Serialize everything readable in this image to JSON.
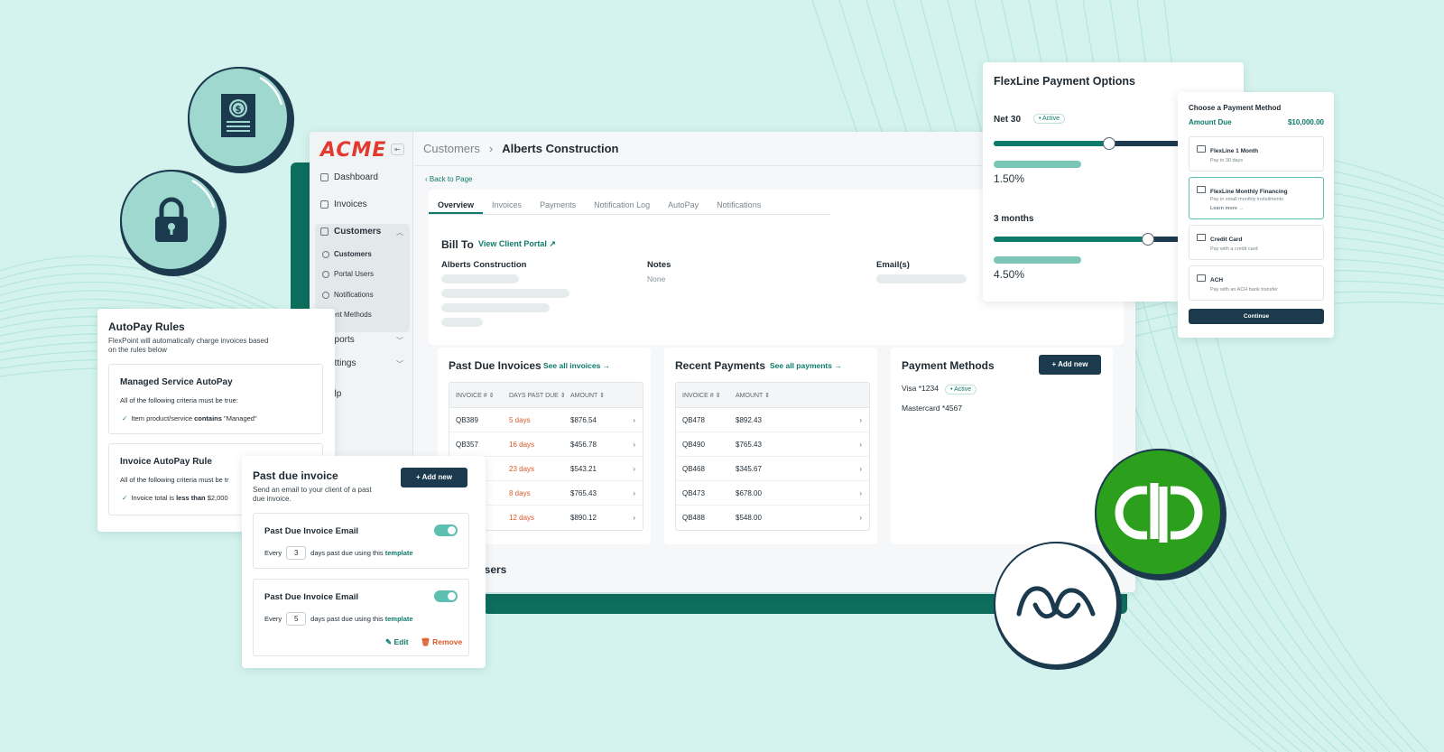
{
  "app": {
    "logo": "ACME",
    "collapse_icon": "⇤",
    "sidebar": {
      "dashboard": "Dashboard",
      "invoices": "Invoices",
      "customers": "Customers",
      "sub_customers": "Customers",
      "sub_portal_users": "Portal Users",
      "sub_notifications": "Notifications",
      "sub_payment_methods": "yment Methods",
      "reports": "eports",
      "settings": "ettings",
      "help": "elp"
    },
    "breadcrumb": {
      "parent": "Customers",
      "sep": "›",
      "current": "Alberts Construction"
    },
    "back_link": "‹ Back to Page",
    "tabs": [
      "Overview",
      "Invoices",
      "Payments",
      "Notification Log",
      "AutoPay",
      "Notifications"
    ],
    "bill_to": {
      "title": "Bill To",
      "portal_link": "View Client Portal ↗",
      "company": "Alberts Construction",
      "notes_label": "Notes",
      "notes_value": "None",
      "emails_label": "Email(s)"
    },
    "past_due": {
      "title": "Past Due Invoices",
      "link": "See all invoices →",
      "col_invoice": "INVOICE #  ⇕",
      "col_days": "DAYS PAST DUE  ⇕",
      "col_amount": "AMOUNT  ⇕",
      "rows": [
        {
          "invoice": "QB389",
          "days": "5 days",
          "amount": "$876.54"
        },
        {
          "invoice": "QB357",
          "days": "16 days",
          "amount": "$456.78"
        },
        {
          "invoice": "",
          "days": "23 days",
          "amount": "$543.21"
        },
        {
          "invoice": "",
          "days": "8 days",
          "amount": "$765.43"
        },
        {
          "invoice": "",
          "days": "12 days",
          "amount": "$890.12"
        }
      ]
    },
    "recent_payments": {
      "title": "Recent Payments",
      "link": "See all payments →",
      "col_invoice": "INVOICE #  ⇕",
      "col_amount": "AMOUNT  ⇕",
      "rows": [
        {
          "invoice": "QB478",
          "amount": "$892.43"
        },
        {
          "invoice": "QB490",
          "amount": "$765.43"
        },
        {
          "invoice": "QB468",
          "amount": "$345.67"
        },
        {
          "invoice": "QB473",
          "amount": "$678.00"
        },
        {
          "invoice": "QB488",
          "amount": "$548.00"
        }
      ]
    },
    "payment_methods": {
      "title": "Payment Methods",
      "add_button": "+   Add new",
      "visa": "Visa *1234",
      "visa_status": "• Active",
      "mastercard": "Mastercard *4567"
    },
    "users_label": "Users",
    "row_arrow": "›"
  },
  "autopay": {
    "title": "AutoPay Rules",
    "desc_line1": "FlexPoint will automatically charge invoices based",
    "desc_line2": "on the rules below",
    "rule1_title": "Managed Service AutoPay",
    "rule1_criteria": "All of the following criteria must be true:",
    "rule1_check_pre": "Item product/service",
    "rule1_check_bold": "contains",
    "rule1_check_post": "\"Managed\"",
    "rule2_title": "Invoice AutoPay Rule",
    "rule2_criteria": "All of the following criteria must be tr",
    "rule2_check_pre": "Invoice total is",
    "rule2_check_bold": "less than",
    "rule2_check_post": "$2,000",
    "check": "✓"
  },
  "past_due_card": {
    "title": "Past due invoice",
    "desc_line1": "Send an email to your client of a past",
    "desc_line2": "due invoice.",
    "add_button": "+   Add new",
    "emails": [
      {
        "title": "Past Due Invoice Email",
        "every": "Every",
        "days": "3",
        "text": "days past due using this",
        "link": "template"
      },
      {
        "title": "Past Due Invoice Email",
        "every": "Every",
        "days": "5",
        "text": "days past due using this",
        "link": "template"
      }
    ],
    "edit": "✎ Edit",
    "remove": "🗑 Remove"
  },
  "flexline": {
    "title": "FlexLine Payment Options",
    "net30_label": "Net 30",
    "net30_status": "• Active",
    "net30_level": 0.44,
    "net30_rate": "1.50%",
    "months_label": "3 months",
    "months_level": 0.59,
    "months_rate": "4.50%"
  },
  "payment_method_card": {
    "title": "Choose a Payment Method",
    "amount_label": "Amount Due",
    "amount_value": "$10,000.00",
    "options": [
      {
        "title": "FlexLine 1 Month",
        "desc": "Pay in 30 days"
      },
      {
        "title": "FlexLine Monthly Financing",
        "desc": "Pay in small monthly installments",
        "link": "Learn more →"
      },
      {
        "title": "Credit Card",
        "desc": "Pay with a credit card"
      },
      {
        "title": "ACH",
        "desc": "Pay with an ACH bank transfer"
      }
    ],
    "continue": "Continue"
  },
  "colors": {
    "background": "#d4f3ee",
    "brand_teal": "#0d6e5e",
    "navy": "#1b3a4d",
    "quickbooks_green": "#2ca01c",
    "acme_red": "#e23a2f",
    "overdue_orange": "#dd5a2a"
  },
  "icons": [
    "invoice-dollar-icon",
    "padlock-icon",
    "quickbooks-logo-icon",
    "flexpoint-logo-icon"
  ]
}
